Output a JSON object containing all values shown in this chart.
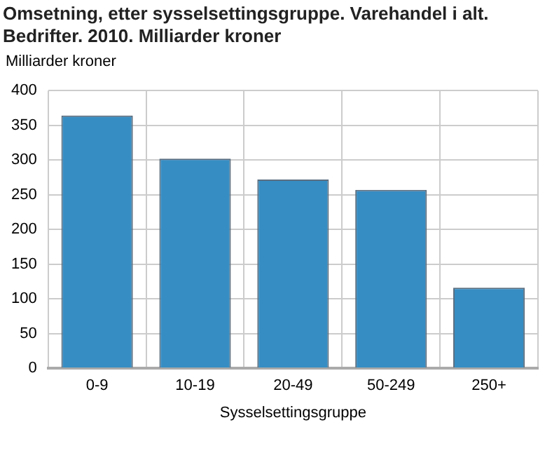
{
  "chart_data": {
    "type": "bar",
    "title": "Omsetning, etter sysselsettingsgruppe. Varehandel i alt. Bedrifter. 2010. Milliarder kroner",
    "ylabel": "Milliarder kroner",
    "xlabel": "Sysselsettingsgruppe",
    "categories": [
      "0-9",
      "10-19",
      "20-49",
      "50-249",
      "250+"
    ],
    "values": [
      364,
      302,
      272,
      257,
      116
    ],
    "color": "#368dc3",
    "ylim": [
      0,
      400
    ],
    "yticks": [
      0,
      50,
      100,
      150,
      200,
      250,
      300,
      350,
      400
    ],
    "grid": true
  }
}
